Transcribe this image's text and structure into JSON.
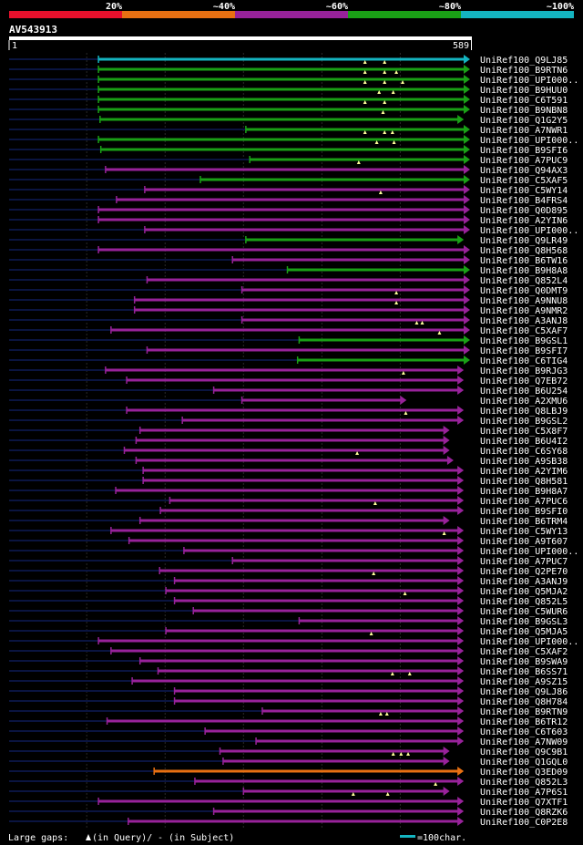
{
  "legend": {
    "scale_labels": [
      "20%",
      "~40%",
      "~60%",
      "~80%",
      "~100%"
    ],
    "colors": [
      "#e8102c",
      "#e87012",
      "#98229a",
      "#1aa016",
      "#14b4c0"
    ]
  },
  "query": {
    "id": "AV543913",
    "start_label": "1",
    "end_label": "589",
    "length": 589
  },
  "footer": {
    "gaps_prefix": "Large gaps:",
    "gaps_query": "(in Query)/",
    "gaps_subject": "- (in Subject)",
    "scale_label": "=100char.",
    "scale_color": "#14b4c0"
  },
  "colors": {
    "query_line": "#0a1440",
    "gap_line": "#303030",
    "cyan": "#14b4c0",
    "green": "#1aa016",
    "purple": "#98229a",
    "orange": "#e87012",
    "marker": "#ffff9a"
  },
  "chart_data": {
    "type": "alignment",
    "query_length": 589,
    "hits": [
      {
        "name": "UniRef100_Q9LJ85",
        "color": "cyan",
        "start": 115,
        "end": 589,
        "marks": []
      },
      {
        "name": "UniRef100_B9RTN6",
        "color": "green",
        "start": 115,
        "end": 589,
        "marks": [
          455,
          480
        ]
      },
      {
        "name": "UniRef100_UPI000..",
        "color": "green",
        "start": 115,
        "end": 589,
        "marks": [
          455,
          480,
          495
        ]
      },
      {
        "name": "UniRef100_B9HUU0",
        "color": "green",
        "start": 115,
        "end": 589,
        "marks": [
          455,
          480,
          503
        ]
      },
      {
        "name": "UniRef100_C6T591",
        "color": "green",
        "start": 115,
        "end": 589,
        "marks": [
          473,
          491
        ]
      },
      {
        "name": "UniRef100_B9NBN8",
        "color": "green",
        "start": 115,
        "end": 589,
        "marks": [
          455,
          480
        ]
      },
      {
        "name": "UniRef100_Q1G2Y5",
        "color": "green",
        "start": 117,
        "end": 581,
        "marks": [
          478
        ]
      },
      {
        "name": "UniRef100_A7NWR1",
        "color": "green",
        "start": 303,
        "end": 589,
        "marks": []
      },
      {
        "name": "UniRef100_UPI000..",
        "color": "green",
        "start": 115,
        "end": 589,
        "marks": [
          455,
          480,
          490
        ]
      },
      {
        "name": "UniRef100_B9SFI6",
        "color": "green",
        "start": 118,
        "end": 589,
        "marks": [
          470,
          492
        ]
      },
      {
        "name": "UniRef100_A7PUC9",
        "color": "green",
        "start": 308,
        "end": 589,
        "marks": []
      },
      {
        "name": "UniRef100_Q94AX3",
        "color": "purple",
        "start": 124,
        "end": 589,
        "marks": [
          447
        ]
      },
      {
        "name": "UniRef100_C5XAF5",
        "color": "green",
        "start": 245,
        "end": 589,
        "marks": []
      },
      {
        "name": "UniRef100_C5WY14",
        "color": "purple",
        "start": 174,
        "end": 589,
        "marks": []
      },
      {
        "name": "UniRef100_B4FRS4",
        "color": "purple",
        "start": 138,
        "end": 589,
        "marks": [
          475
        ]
      },
      {
        "name": "UniRef100_Q0D895",
        "color": "purple",
        "start": 115,
        "end": 589,
        "marks": []
      },
      {
        "name": "UniRef100_A2YIN6",
        "color": "purple",
        "start": 115,
        "end": 589,
        "marks": []
      },
      {
        "name": "UniRef100_UPI000..",
        "color": "purple",
        "start": 174,
        "end": 589,
        "marks": []
      },
      {
        "name": "UniRef100_Q9LR49",
        "color": "green",
        "start": 303,
        "end": 581,
        "marks": []
      },
      {
        "name": "UniRef100_Q8H568",
        "color": "purple",
        "start": 115,
        "end": 589,
        "marks": []
      },
      {
        "name": "UniRef100_B6TW16",
        "color": "purple",
        "start": 286,
        "end": 589,
        "marks": []
      },
      {
        "name": "UniRef100_B9H8A8",
        "color": "green",
        "start": 356,
        "end": 589,
        "marks": []
      },
      {
        "name": "UniRef100_Q852L4",
        "color": "purple",
        "start": 177,
        "end": 589,
        "marks": []
      },
      {
        "name": "UniRef100_Q0DMT9",
        "color": "purple",
        "start": 298,
        "end": 589,
        "marks": []
      },
      {
        "name": "UniRef100_A9NNU8",
        "color": "purple",
        "start": 161,
        "end": 589,
        "marks": [
          495
        ]
      },
      {
        "name": "UniRef100_A9NMR2",
        "color": "purple",
        "start": 161,
        "end": 589,
        "marks": [
          495
        ]
      },
      {
        "name": "UniRef100_A3ANJ8",
        "color": "purple",
        "start": 298,
        "end": 589,
        "marks": []
      },
      {
        "name": "UniRef100_C5XAF7",
        "color": "purple",
        "start": 131,
        "end": 589,
        "marks": [
          521,
          528
        ]
      },
      {
        "name": "UniRef100_B9GSL1",
        "color": "green",
        "start": 371,
        "end": 589,
        "marks": [
          550
        ]
      },
      {
        "name": "UniRef100_B9SFI7",
        "color": "purple",
        "start": 177,
        "end": 589,
        "marks": []
      },
      {
        "name": "UniRef100_C6TIG4",
        "color": "green",
        "start": 369,
        "end": 589,
        "marks": []
      },
      {
        "name": "UniRef100_B9RJG3",
        "color": "purple",
        "start": 124,
        "end": 581,
        "marks": []
      },
      {
        "name": "UniRef100_Q7EB72",
        "color": "purple",
        "start": 151,
        "end": 581,
        "marks": [
          504
        ]
      },
      {
        "name": "UniRef100_B6U254",
        "color": "purple",
        "start": 262,
        "end": 581,
        "marks": []
      },
      {
        "name": "UniRef100_A2XMU6",
        "color": "purple",
        "start": 298,
        "end": 508,
        "marks": []
      },
      {
        "name": "UniRef100_Q8LBJ9",
        "color": "purple",
        "start": 151,
        "end": 581,
        "marks": []
      },
      {
        "name": "UniRef100_B9GSL2",
        "color": "purple",
        "start": 222,
        "end": 581,
        "marks": [
          507
        ]
      },
      {
        "name": "UniRef100_C5X8F7",
        "color": "purple",
        "start": 168,
        "end": 563,
        "marks": []
      },
      {
        "name": "UniRef100_B6U4I2",
        "color": "purple",
        "start": 163,
        "end": 563,
        "marks": []
      },
      {
        "name": "UniRef100_C6SY68",
        "color": "purple",
        "start": 148,
        "end": 563,
        "marks": []
      },
      {
        "name": "UniRef100_A9SB38",
        "color": "purple",
        "start": 163,
        "end": 568,
        "marks": [
          445
        ]
      },
      {
        "name": "UniRef100_A2YIM6",
        "color": "purple",
        "start": 172,
        "end": 581,
        "marks": []
      },
      {
        "name": "UniRef100_Q8H581",
        "color": "purple",
        "start": 172,
        "end": 581,
        "marks": []
      },
      {
        "name": "UniRef100_B9H8A7",
        "color": "purple",
        "start": 137,
        "end": 581,
        "marks": []
      },
      {
        "name": "UniRef100_A7PUC6",
        "color": "purple",
        "start": 206,
        "end": 581,
        "marks": []
      },
      {
        "name": "UniRef100_B9SFI0",
        "color": "purple",
        "start": 194,
        "end": 581,
        "marks": [
          468
        ]
      },
      {
        "name": "UniRef100_B6TRM4",
        "color": "purple",
        "start": 168,
        "end": 563,
        "marks": []
      },
      {
        "name": "UniRef100_C5WY13",
        "color": "purple",
        "start": 131,
        "end": 581,
        "marks": []
      },
      {
        "name": "UniRef100_A9T607",
        "color": "purple",
        "start": 154,
        "end": 581,
        "marks": [
          556
        ]
      },
      {
        "name": "UniRef100_UPI000..",
        "color": "purple",
        "start": 224,
        "end": 581,
        "marks": []
      },
      {
        "name": "UniRef100_A7PUC7",
        "color": "purple",
        "start": 286,
        "end": 581,
        "marks": []
      },
      {
        "name": "UniRef100_Q2PE70",
        "color": "purple",
        "start": 193,
        "end": 581,
        "marks": []
      },
      {
        "name": "UniRef100_A3ANJ9",
        "color": "purple",
        "start": 212,
        "end": 581,
        "marks": [
          466
        ]
      },
      {
        "name": "UniRef100_Q5MJA2",
        "color": "purple",
        "start": 201,
        "end": 581,
        "marks": []
      },
      {
        "name": "UniRef100_Q852L5",
        "color": "purple",
        "start": 212,
        "end": 581,
        "marks": [
          506
        ]
      },
      {
        "name": "UniRef100_C5WUR6",
        "color": "purple",
        "start": 236,
        "end": 581,
        "marks": []
      },
      {
        "name": "UniRef100_B9GSL3",
        "color": "purple",
        "start": 371,
        "end": 581,
        "marks": []
      },
      {
        "name": "UniRef100_Q5MJA5",
        "color": "purple",
        "start": 201,
        "end": 581,
        "marks": []
      },
      {
        "name": "UniRef100_UPI000..",
        "color": "purple",
        "start": 115,
        "end": 581,
        "marks": [
          463
        ]
      },
      {
        "name": "UniRef100_C5XAF2",
        "color": "purple",
        "start": 131,
        "end": 581,
        "marks": []
      },
      {
        "name": "UniRef100_B9SWA9",
        "color": "purple",
        "start": 168,
        "end": 581,
        "marks": []
      },
      {
        "name": "UniRef100_B6SS71",
        "color": "purple",
        "start": 191,
        "end": 581,
        "marks": []
      },
      {
        "name": "UniRef100_A9SZ15",
        "color": "purple",
        "start": 158,
        "end": 581,
        "marks": [
          490,
          512
        ]
      },
      {
        "name": "UniRef100_Q9LJ86",
        "color": "purple",
        "start": 212,
        "end": 581,
        "marks": []
      },
      {
        "name": "UniRef100_Q8H784",
        "color": "purple",
        "start": 212,
        "end": 581,
        "marks": []
      },
      {
        "name": "UniRef100_B9RTN9",
        "color": "purple",
        "start": 324,
        "end": 581,
        "marks": []
      },
      {
        "name": "UniRef100_B6TR12",
        "color": "purple",
        "start": 126,
        "end": 581,
        "marks": [
          475,
          483
        ]
      },
      {
        "name": "UniRef100_C6T603",
        "color": "purple",
        "start": 251,
        "end": 581,
        "marks": []
      },
      {
        "name": "UniRef100_A7NW09",
        "color": "purple",
        "start": 316,
        "end": 581,
        "marks": []
      },
      {
        "name": "UniRef100_Q9C9B1",
        "color": "purple",
        "start": 270,
        "end": 563,
        "marks": []
      },
      {
        "name": "UniRef100_Q1GQL0",
        "color": "purple",
        "start": 274,
        "end": 563,
        "marks": [
          491,
          501,
          510
        ]
      },
      {
        "name": "UniRef100_Q3ED09",
        "color": "orange",
        "start": 186,
        "end": 581,
        "marks": []
      },
      {
        "name": "UniRef100_Q852L3",
        "color": "purple",
        "start": 238,
        "end": 581,
        "marks": []
      },
      {
        "name": "UniRef100_A7P6S1",
        "color": "purple",
        "start": 300,
        "end": 563,
        "marks": [
          545
        ]
      },
      {
        "name": "UniRef100_Q7XTF1",
        "color": "purple",
        "start": 115,
        "end": 581,
        "marks": [
          440,
          484
        ]
      },
      {
        "name": "UniRef100_Q8RZK6",
        "color": "purple",
        "start": 262,
        "end": 581,
        "marks": []
      },
      {
        "name": "UniRef100_C0P2E8",
        "color": "purple",
        "start": 153,
        "end": 581,
        "marks": []
      }
    ]
  }
}
